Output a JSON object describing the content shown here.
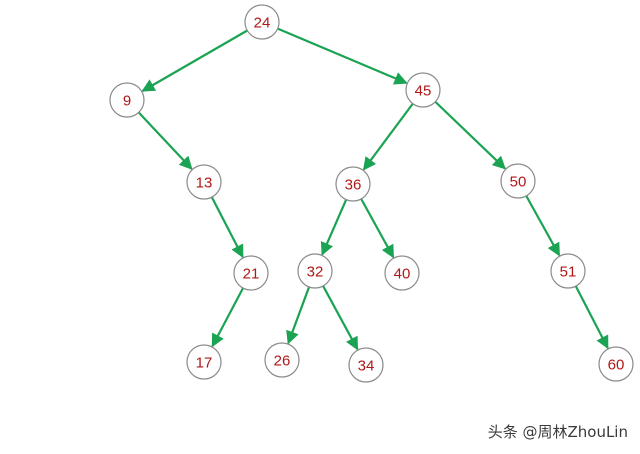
{
  "colors": {
    "edge": "#1aa352",
    "node_text": "#b01717",
    "node_border": "#8a8a8a"
  },
  "tree": {
    "nodes": [
      {
        "id": "n24",
        "label": "24"
      },
      {
        "id": "n9",
        "label": "9"
      },
      {
        "id": "n45",
        "label": "45"
      },
      {
        "id": "n13",
        "label": "13"
      },
      {
        "id": "n36",
        "label": "36"
      },
      {
        "id": "n50",
        "label": "50"
      },
      {
        "id": "n21",
        "label": "21"
      },
      {
        "id": "n32",
        "label": "32"
      },
      {
        "id": "n40",
        "label": "40"
      },
      {
        "id": "n51",
        "label": "51"
      },
      {
        "id": "n17",
        "label": "17"
      },
      {
        "id": "n26",
        "label": "26"
      },
      {
        "id": "n34",
        "label": "34"
      },
      {
        "id": "n60",
        "label": "60"
      }
    ],
    "edges": [
      {
        "from": "n24",
        "to": "n9"
      },
      {
        "from": "n24",
        "to": "n45"
      },
      {
        "from": "n9",
        "to": "n13"
      },
      {
        "from": "n45",
        "to": "n36"
      },
      {
        "from": "n45",
        "to": "n50"
      },
      {
        "from": "n13",
        "to": "n21"
      },
      {
        "from": "n36",
        "to": "n32"
      },
      {
        "from": "n36",
        "to": "n40"
      },
      {
        "from": "n50",
        "to": "n51"
      },
      {
        "from": "n21",
        "to": "n17"
      },
      {
        "from": "n32",
        "to": "n26"
      },
      {
        "from": "n32",
        "to": "n34"
      },
      {
        "from": "n51",
        "to": "n60"
      }
    ]
  },
  "watermark": {
    "text": "头条 @周林ZhouLin"
  }
}
